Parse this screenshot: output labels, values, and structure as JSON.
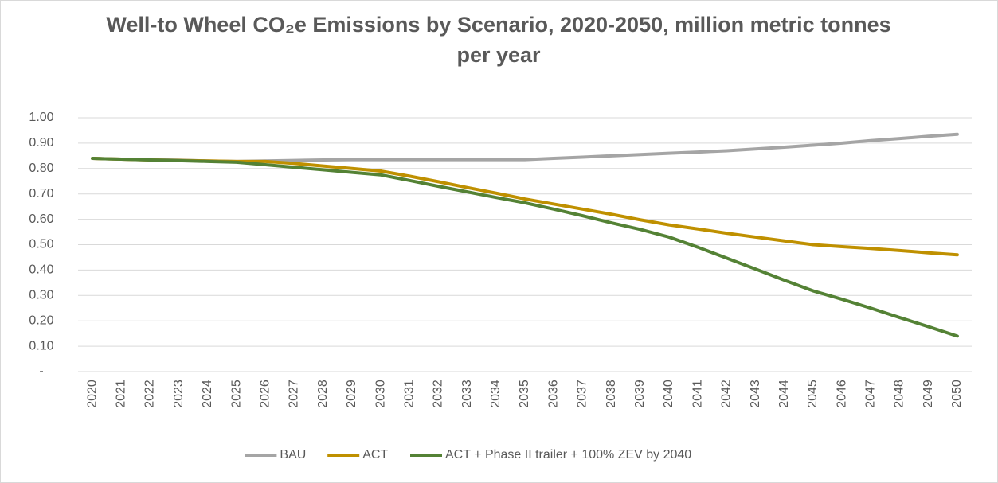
{
  "chart_data": {
    "type": "line",
    "title": "Well-to Wheel CO₂e Emissions by Scenario, 2020-2050, million metric tonnes per year",
    "categories": [
      "2020",
      "2021",
      "2022",
      "2023",
      "2024",
      "2025",
      "2026",
      "2027",
      "2028",
      "2029",
      "2030",
      "2031",
      "2032",
      "2033",
      "2034",
      "2035",
      "2036",
      "2037",
      "2038",
      "2039",
      "2040",
      "2041",
      "2042",
      "2043",
      "2044",
      "2045",
      "2046",
      "2047",
      "2048",
      "2049",
      "2050"
    ],
    "series": [
      {
        "name": "BAU",
        "color": "#a5a5a5",
        "values": [
          0.84,
          0.837,
          0.835,
          0.833,
          0.83,
          0.828,
          0.83,
          0.832,
          0.834,
          0.835,
          0.835,
          0.835,
          0.835,
          0.835,
          0.835,
          0.835,
          0.84,
          0.845,
          0.85,
          0.855,
          0.86,
          0.865,
          0.87,
          0.877,
          0.884,
          0.892,
          0.9,
          0.91,
          0.918,
          0.927,
          0.935
        ]
      },
      {
        "name": "ACT",
        "color": "#bf9000",
        "values": [
          0.84,
          0.837,
          0.834,
          0.832,
          0.83,
          0.828,
          0.828,
          0.82,
          0.81,
          0.8,
          0.79,
          0.77,
          0.748,
          0.725,
          0.703,
          0.68,
          0.66,
          0.64,
          0.62,
          0.598,
          0.578,
          0.562,
          0.545,
          0.53,
          0.515,
          0.5,
          0.492,
          0.485,
          0.477,
          0.468,
          0.46
        ]
      },
      {
        "name": "ACT + Phase II trailer + 100% ZEV by 2040",
        "color": "#548235",
        "values": [
          0.84,
          0.837,
          0.834,
          0.831,
          0.828,
          0.825,
          0.815,
          0.805,
          0.795,
          0.785,
          0.775,
          0.753,
          0.73,
          0.708,
          0.686,
          0.665,
          0.64,
          0.614,
          0.586,
          0.56,
          0.53,
          0.49,
          0.447,
          0.404,
          0.36,
          0.318,
          0.285,
          0.25,
          0.213,
          0.177,
          0.14
        ]
      }
    ],
    "ylim": [
      0,
      1
    ],
    "yticks": [
      {
        "value": 0,
        "label": "-"
      },
      {
        "value": 0.1,
        "label": "0.10"
      },
      {
        "value": 0.2,
        "label": "0.20"
      },
      {
        "value": 0.3,
        "label": "0.30"
      },
      {
        "value": 0.4,
        "label": "0.40"
      },
      {
        "value": 0.5,
        "label": "0.50"
      },
      {
        "value": 0.6,
        "label": "0.60"
      },
      {
        "value": 0.7,
        "label": "0.70"
      },
      {
        "value": 0.8,
        "label": "0.80"
      },
      {
        "value": 0.9,
        "label": "0.90"
      },
      {
        "value": 1,
        "label": "1.00"
      }
    ],
    "grid": true,
    "legend": "bottom"
  }
}
